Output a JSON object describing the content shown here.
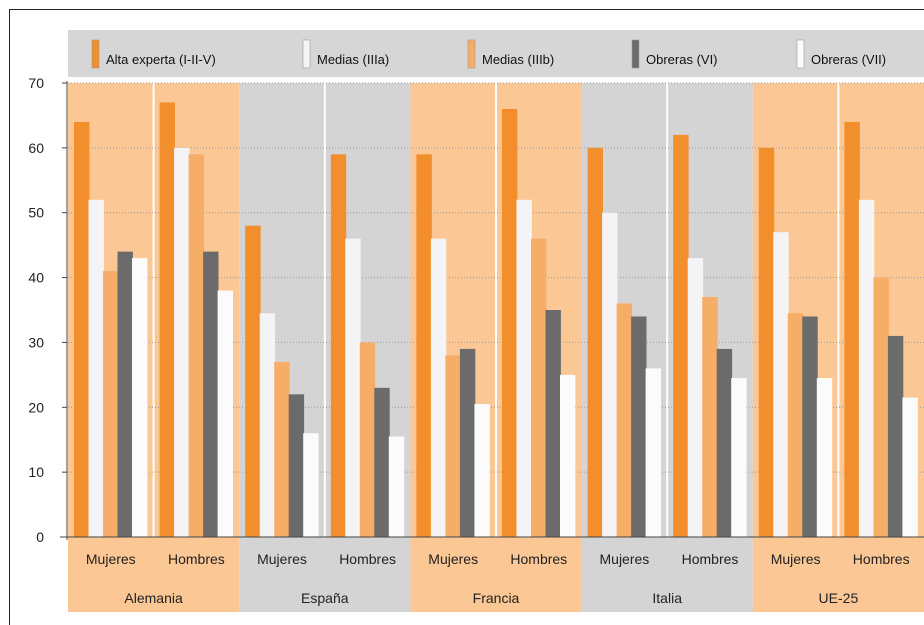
{
  "chart_data": {
    "type": "bar",
    "title": "",
    "xlabel": "",
    "ylabel": "",
    "ylim": [
      0,
      70
    ],
    "yticks": [
      0,
      10,
      20,
      30,
      40,
      50,
      60,
      70
    ],
    "grid": true,
    "legend_position": "top",
    "countries": [
      "Alemania",
      "España",
      "Francia",
      "Italia",
      "UE-25"
    ],
    "genders": [
      "Mujeres",
      "Hombres"
    ],
    "categories": [
      "Alemania Mujeres",
      "Alemania Hombres",
      "España Mujeres",
      "España Hombres",
      "Francia Mujeres",
      "Francia Hombres",
      "Italia Mujeres",
      "Italia Hombres",
      "UE-25 Mujeres",
      "UE-25 Hombres"
    ],
    "series": [
      {
        "name": "Alta experta (I-II-V)",
        "color": "#f28e2b",
        "values": [
          64,
          67,
          48,
          59,
          59,
          66,
          60,
          62,
          60,
          64
        ]
      },
      {
        "name": "Medias (IIIa)",
        "color": "#f4f4f6",
        "values": [
          52,
          60,
          34.5,
          46,
          46,
          52,
          50,
          43,
          47,
          52
        ]
      },
      {
        "name": "Medias (IIIb)",
        "color": "#f6ad68",
        "values": [
          41,
          59,
          27,
          30,
          28,
          46,
          36,
          37,
          34.5,
          40
        ]
      },
      {
        "name": "Obreras (VI)",
        "color": "#6b6b6b",
        "values": [
          44,
          44,
          22,
          23,
          29,
          35,
          34,
          29,
          34,
          31
        ]
      },
      {
        "name": "Obreras (VII)",
        "color": "#fbfbfb",
        "values": [
          43,
          38,
          16,
          15.5,
          20.5,
          25,
          26,
          24.5,
          24.5,
          21.5
        ]
      }
    ],
    "group_colors": [
      "#fbc794",
      "#d4d4d4",
      "#fbc794",
      "#d4d4d4",
      "#fbc794"
    ]
  }
}
